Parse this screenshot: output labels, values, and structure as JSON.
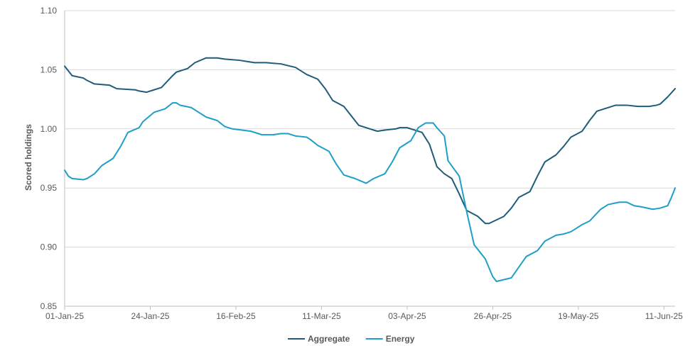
{
  "chart_data": {
    "type": "line",
    "title": "",
    "xlabel": "",
    "ylabel": "Scored holdings",
    "ylim": [
      0.85,
      1.1
    ],
    "y_ticks": [
      "1.10",
      "1.05",
      "1.00",
      "0.95",
      "0.90",
      "0.85"
    ],
    "y_tick_values": [
      1.1,
      1.05,
      1.0,
      0.95,
      0.9,
      0.85
    ],
    "x_ticks": [
      "01-Jan-25",
      "24-Jan-25",
      "16-Feb-25",
      "11-Mar-25",
      "03-Apr-25",
      "26-Apr-25",
      "19-May-25",
      "11-Jun-25"
    ],
    "x_tick_dates": [
      "2025-01-01",
      "2025-01-24",
      "2025-02-16",
      "2025-03-11",
      "2025-04-03",
      "2025-04-26",
      "2025-05-19",
      "2025-06-11"
    ],
    "x_range": [
      "2025-01-01",
      "2025-06-14"
    ],
    "grid": "horizontal",
    "legend_position": "bottom",
    "series": [
      {
        "name": "Aggregate",
        "color": "#1f5c7a",
        "points": [
          [
            "2025-01-01",
            1.053
          ],
          [
            "2025-01-03",
            1.045
          ],
          [
            "2025-01-06",
            1.043
          ],
          [
            "2025-01-07",
            1.041
          ],
          [
            "2025-01-09",
            1.038
          ],
          [
            "2025-01-13",
            1.037
          ],
          [
            "2025-01-15",
            1.034
          ],
          [
            "2025-01-20",
            1.033
          ],
          [
            "2025-01-21",
            1.032
          ],
          [
            "2025-01-23",
            1.031
          ],
          [
            "2025-01-25",
            1.033
          ],
          [
            "2025-01-27",
            1.035
          ],
          [
            "2025-01-30",
            1.045
          ],
          [
            "2025-01-31",
            1.048
          ],
          [
            "2025-02-03",
            1.051
          ],
          [
            "2025-02-05",
            1.056
          ],
          [
            "2025-02-08",
            1.06
          ],
          [
            "2025-02-11",
            1.06
          ],
          [
            "2025-02-13",
            1.059
          ],
          [
            "2025-02-17",
            1.058
          ],
          [
            "2025-02-19",
            1.057
          ],
          [
            "2025-02-21",
            1.056
          ],
          [
            "2025-02-24",
            1.056
          ],
          [
            "2025-02-28",
            1.055
          ],
          [
            "2025-03-04",
            1.052
          ],
          [
            "2025-03-07",
            1.046
          ],
          [
            "2025-03-10",
            1.042
          ],
          [
            "2025-03-12",
            1.034
          ],
          [
            "2025-03-14",
            1.024
          ],
          [
            "2025-03-17",
            1.019
          ],
          [
            "2025-03-20",
            1.007
          ],
          [
            "2025-03-21",
            1.003
          ],
          [
            "2025-03-24",
            1.0
          ],
          [
            "2025-03-26",
            0.998
          ],
          [
            "2025-03-28",
            0.999
          ],
          [
            "2025-03-31",
            1.0
          ],
          [
            "2025-04-01",
            1.001
          ],
          [
            "2025-04-03",
            1.001
          ],
          [
            "2025-04-05",
            0.999
          ],
          [
            "2025-04-07",
            0.997
          ],
          [
            "2025-04-09",
            0.987
          ],
          [
            "2025-04-11",
            0.968
          ],
          [
            "2025-04-13",
            0.962
          ],
          [
            "2025-04-15",
            0.958
          ],
          [
            "2025-04-17",
            0.945
          ],
          [
            "2025-04-19",
            0.931
          ],
          [
            "2025-04-22",
            0.926
          ],
          [
            "2025-04-24",
            0.92
          ],
          [
            "2025-04-25",
            0.92
          ],
          [
            "2025-04-27",
            0.923
          ],
          [
            "2025-04-29",
            0.926
          ],
          [
            "2025-05-01",
            0.933
          ],
          [
            "2025-05-03",
            0.942
          ],
          [
            "2025-05-06",
            0.947
          ],
          [
            "2025-05-08",
            0.96
          ],
          [
            "2025-05-10",
            0.972
          ],
          [
            "2025-05-13",
            0.978
          ],
          [
            "2025-05-15",
            0.985
          ],
          [
            "2025-05-17",
            0.993
          ],
          [
            "2025-05-20",
            0.998
          ],
          [
            "2025-05-22",
            1.007
          ],
          [
            "2025-05-24",
            1.015
          ],
          [
            "2025-05-27",
            1.018
          ],
          [
            "2025-05-29",
            1.02
          ],
          [
            "2025-06-01",
            1.02
          ],
          [
            "2025-06-04",
            1.019
          ],
          [
            "2025-06-07",
            1.019
          ],
          [
            "2025-06-09",
            1.02
          ],
          [
            "2025-06-10",
            1.021
          ],
          [
            "2025-06-12",
            1.027
          ],
          [
            "2025-06-14",
            1.034
          ]
        ]
      },
      {
        "name": "Energy",
        "color": "#1e9fc8",
        "points": [
          [
            "2025-01-01",
            0.965
          ],
          [
            "2025-01-02",
            0.96
          ],
          [
            "2025-01-03",
            0.958
          ],
          [
            "2025-01-06",
            0.957
          ],
          [
            "2025-01-07",
            0.958
          ],
          [
            "2025-01-09",
            0.962
          ],
          [
            "2025-01-11",
            0.969
          ],
          [
            "2025-01-14",
            0.975
          ],
          [
            "2025-01-16",
            0.985
          ],
          [
            "2025-01-18",
            0.997
          ],
          [
            "2025-01-21",
            1.001
          ],
          [
            "2025-01-22",
            1.006
          ],
          [
            "2025-01-25",
            1.014
          ],
          [
            "2025-01-28",
            1.017
          ],
          [
            "2025-01-30",
            1.022
          ],
          [
            "2025-01-31",
            1.022
          ],
          [
            "2025-02-01",
            1.02
          ],
          [
            "2025-02-04",
            1.018
          ],
          [
            "2025-02-06",
            1.014
          ],
          [
            "2025-02-08",
            1.01
          ],
          [
            "2025-02-11",
            1.007
          ],
          [
            "2025-02-13",
            1.002
          ],
          [
            "2025-02-15",
            1.0
          ],
          [
            "2025-02-20",
            0.998
          ],
          [
            "2025-02-23",
            0.995
          ],
          [
            "2025-02-26",
            0.995
          ],
          [
            "2025-02-28",
            0.996
          ],
          [
            "2025-03-02",
            0.996
          ],
          [
            "2025-03-04",
            0.994
          ],
          [
            "2025-03-07",
            0.993
          ],
          [
            "2025-03-08",
            0.991
          ],
          [
            "2025-03-10",
            0.986
          ],
          [
            "2025-03-13",
            0.981
          ],
          [
            "2025-03-15",
            0.97
          ],
          [
            "2025-03-17",
            0.961
          ],
          [
            "2025-03-20",
            0.958
          ],
          [
            "2025-03-23",
            0.954
          ],
          [
            "2025-03-25",
            0.958
          ],
          [
            "2025-03-28",
            0.962
          ],
          [
            "2025-03-30",
            0.972
          ],
          [
            "2025-04-01",
            0.984
          ],
          [
            "2025-04-04",
            0.99
          ],
          [
            "2025-04-06",
            1.001
          ],
          [
            "2025-04-08",
            1.005
          ],
          [
            "2025-04-10",
            1.005
          ],
          [
            "2025-04-11",
            1.001
          ],
          [
            "2025-04-13",
            0.994
          ],
          [
            "2025-04-14",
            0.973
          ],
          [
            "2025-04-17",
            0.96
          ],
          [
            "2025-04-19",
            0.93
          ],
          [
            "2025-04-21",
            0.902
          ],
          [
            "2025-04-24",
            0.89
          ],
          [
            "2025-04-26",
            0.875
          ],
          [
            "2025-04-27",
            0.871
          ],
          [
            "2025-05-01",
            0.874
          ],
          [
            "2025-05-03",
            0.883
          ],
          [
            "2025-05-05",
            0.892
          ],
          [
            "2025-05-08",
            0.897
          ],
          [
            "2025-05-10",
            0.905
          ],
          [
            "2025-05-13",
            0.91
          ],
          [
            "2025-05-15",
            0.911
          ],
          [
            "2025-05-17",
            0.913
          ],
          [
            "2025-05-20",
            0.919
          ],
          [
            "2025-05-22",
            0.922
          ],
          [
            "2025-05-25",
            0.932
          ],
          [
            "2025-05-27",
            0.936
          ],
          [
            "2025-05-30",
            0.938
          ],
          [
            "2025-06-01",
            0.938
          ],
          [
            "2025-06-03",
            0.935
          ],
          [
            "2025-06-05",
            0.934
          ],
          [
            "2025-06-08",
            0.932
          ],
          [
            "2025-06-10",
            0.933
          ],
          [
            "2025-06-12",
            0.935
          ],
          [
            "2025-06-13",
            0.942
          ],
          [
            "2025-06-14",
            0.95
          ]
        ]
      }
    ]
  }
}
